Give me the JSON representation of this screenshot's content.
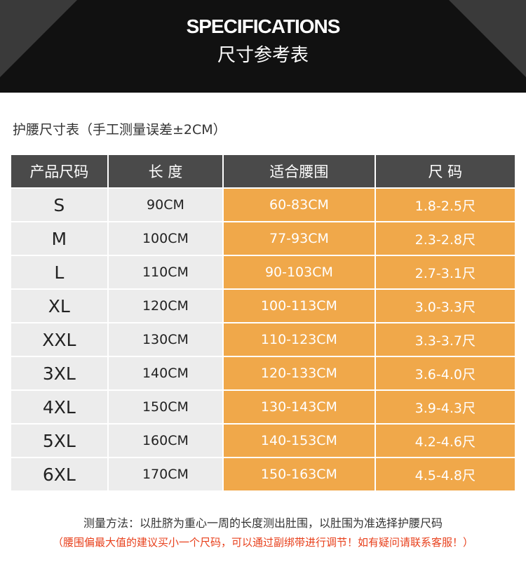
{
  "header": {
    "title": "SPECIFICATIONS",
    "subtitle": "尺寸参考表"
  },
  "table": {
    "caption": "护腰尺寸表（手工测量误差±2CM）",
    "columns": [
      "产品尺码",
      "长 度",
      "适合腰围",
      "尺 码"
    ],
    "rows": [
      [
        "S",
        "90CM",
        "60-83CM",
        "1.8-2.5尺"
      ],
      [
        "M",
        "100CM",
        "77-93CM",
        "2.3-2.8尺"
      ],
      [
        "L",
        "110CM",
        "90-103CM",
        "2.7-3.1尺"
      ],
      [
        "XL",
        "120CM",
        "100-113CM",
        "3.0-3.3尺"
      ],
      [
        "XXL",
        "130CM",
        "110-123CM",
        "3.3-3.7尺"
      ],
      [
        "3XL",
        "140CM",
        "120-133CM",
        "3.6-4.0尺"
      ],
      [
        "4XL",
        "150CM",
        "130-143CM",
        "3.9-4.3尺"
      ],
      [
        "5XL",
        "160CM",
        "140-153CM",
        "4.2-4.6尺"
      ],
      [
        "6XL",
        "170CM",
        "150-163CM",
        "4.5-4.8尺"
      ]
    ]
  },
  "notes": [
    "测量方法：以肚脐为重心一周的长度测出肚围，以肚围为准选择护腰尺码",
    "（腰围偏最大值的建议买小一个尺码，可以通过副绑带进行调节！如有疑问请联系客服！）"
  ]
}
